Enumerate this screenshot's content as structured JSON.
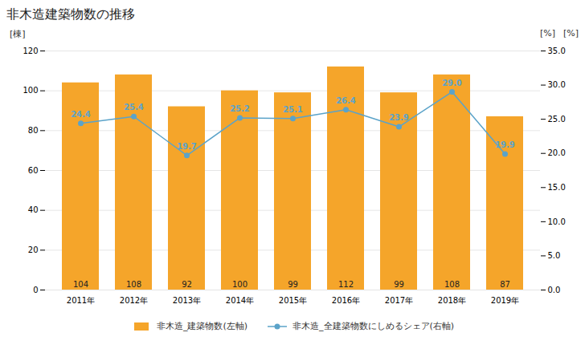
{
  "chart_data": {
    "type": "bar",
    "title": "非木造建築物数の推移",
    "categories": [
      "2011年",
      "2012年",
      "2013年",
      "2014年",
      "2015年",
      "2016年",
      "2017年",
      "2018年",
      "2019年"
    ],
    "ylabel": "[棟]",
    "y2label": "[%]",
    "ylim": [
      0,
      120
    ],
    "yticks": [
      0,
      20,
      40,
      60,
      80,
      100,
      120
    ],
    "y2lim": [
      0.0,
      35.0
    ],
    "y2ticks": [
      {
        "value": 0,
        "label": "0.0"
      },
      {
        "value": 5,
        "label": "5.0"
      },
      {
        "value": 10,
        "label": "10.0"
      },
      {
        "value": 15,
        "label": "15.0"
      },
      {
        "value": 20,
        "label": "20.0"
      },
      {
        "value": 25,
        "label": "25.0"
      },
      {
        "value": 30,
        "label": "30.0"
      },
      {
        "value": 35,
        "label": "35.0"
      }
    ],
    "grid": true,
    "legend": "bottom",
    "data_labels": true,
    "series": [
      {
        "name": "非木造_建築物数(左軸)",
        "type": "bar",
        "color": "#F5A52A",
        "values": [
          104,
          108,
          92,
          100,
          99,
          112,
          99,
          108,
          87
        ]
      },
      {
        "name": "非木造_全建築物数にしめるシェア(右軸)",
        "type": "line",
        "axis": "y2",
        "color": "#5BA3C9",
        "marker": "circle",
        "values": [
          24.4,
          25.4,
          19.7,
          25.2,
          25.1,
          26.4,
          23.9,
          29.0,
          19.9
        ],
        "value_labels": [
          "24.4",
          "25.4",
          "19.7",
          "25.2",
          "25.1",
          "26.4",
          "23.9",
          "29.0",
          "19.9"
        ]
      }
    ]
  }
}
